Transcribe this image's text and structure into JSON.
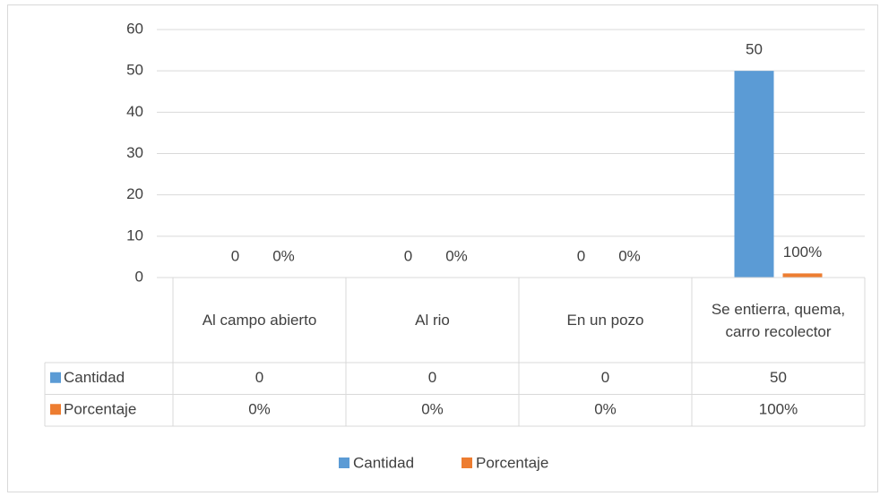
{
  "chart_data": {
    "type": "bar",
    "categories": [
      "Al campo abierto",
      "Al rio",
      "En un pozo",
      "Se entierra, quema, carro recolector"
    ],
    "series": [
      {
        "name": "Cantidad",
        "color": "#5b9bd5",
        "values": [
          0,
          0,
          0,
          50
        ]
      },
      {
        "name": "Porcentaje",
        "color": "#ed7d31",
        "values": [
          0,
          0,
          0,
          1
        ],
        "value_labels": [
          "0%",
          "0%",
          "0%",
          "100%"
        ]
      }
    ],
    "ylim": [
      0,
      60
    ],
    "yticks": [
      0,
      10,
      20,
      30,
      40,
      50,
      60
    ],
    "grid": true,
    "legend": "bottom",
    "data_table": true
  }
}
